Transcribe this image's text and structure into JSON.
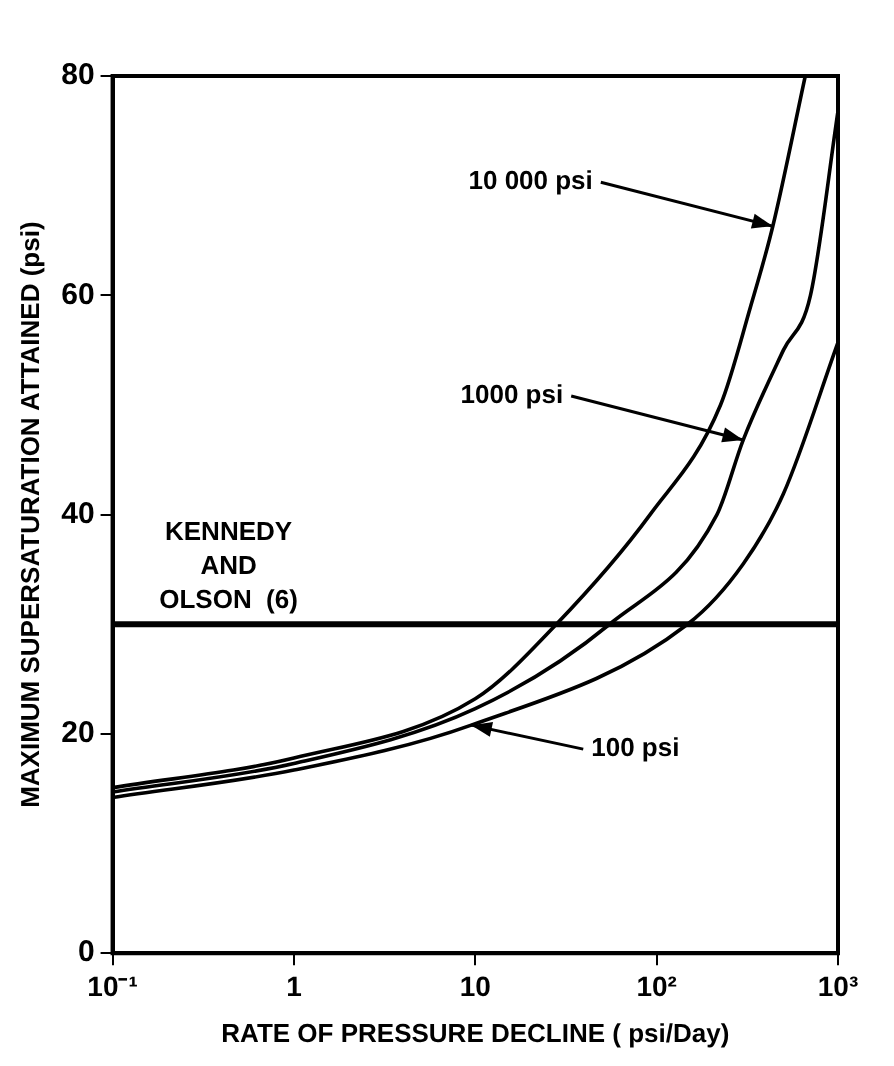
{
  "chart_data": {
    "type": "line",
    "xlabel": "RATE OF PRESSURE DECLINE ( psi/Day)",
    "ylabel": "MAXIMUM SUPERSATURATION ATTAINED (psi)",
    "log": "x",
    "xlim": [
      0.1,
      1000
    ],
    "xticks": [
      {
        "value": 0.1,
        "label": "10⁻¹"
      },
      1,
      10,
      {
        "value": 100,
        "label": "10²"
      },
      {
        "value": 1000,
        "label": "10³"
      }
    ],
    "ylim": [
      0,
      80
    ],
    "yticks": [
      0,
      20,
      40,
      60,
      80
    ],
    "grid": false,
    "legend": false,
    "marker": "none",
    "line_style": "solid",
    "series": [
      {
        "color": "#000000",
        "x": [
          0.1,
          1,
          10,
          28,
          92,
          225,
          330,
          437,
          660
        ],
        "values": [
          15.1,
          17.8,
          23.2,
          30,
          40,
          50,
          59,
          66.3,
          80
        ]
      },
      {
        "color": "#000000",
        "x": [
          0.1,
          1,
          10,
          55,
          215,
          300,
          500,
          705,
          1000
        ],
        "values": [
          14.7,
          17.3,
          22.3,
          30,
          40,
          46.8,
          55,
          60,
          76.8
        ]
      },
      {
        "color": "#000000",
        "x": [
          0.1,
          1,
          9.5,
          148,
          300,
          500,
          1000
        ],
        "values": [
          14.2,
          16.7,
          20.8,
          30,
          35.5,
          41.9,
          55.7
        ]
      }
    ],
    "ref_lines": [
      {
        "axis": "y",
        "value": 30,
        "label": "KENNEDY\nAND\nOLSON  (6)",
        "color": "#000000"
      }
    ],
    "annotations": [
      {
        "text": "10 000 psi",
        "x": 437,
        "y": 66.3
      },
      {
        "text": "1000 psi",
        "x": 300,
        "y": 46.8
      },
      {
        "text": "100 psi",
        "x": 9.5,
        "y": 20.8
      }
    ]
  }
}
